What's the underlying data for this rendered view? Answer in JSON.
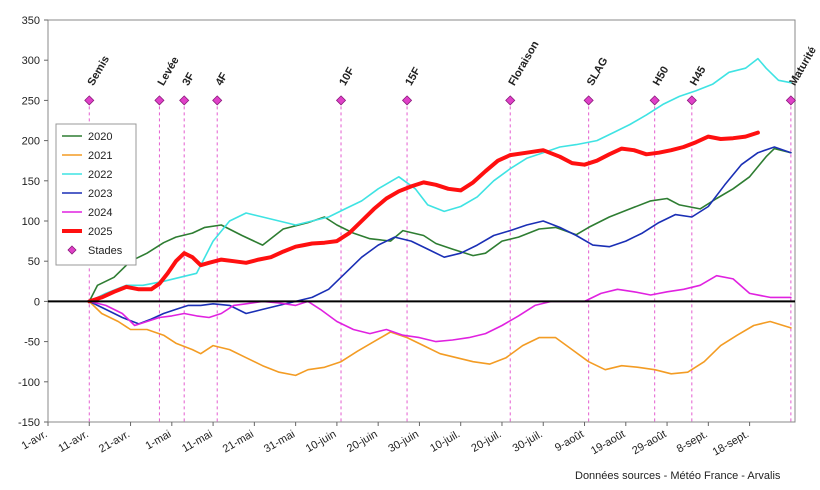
{
  "chart_data": {
    "type": "line",
    "title": "",
    "xlabel": "",
    "ylabel": "",
    "ylim": [
      -150,
      350
    ],
    "yticks": [
      -150,
      -100,
      -50,
      0,
      50,
      100,
      150,
      200,
      250,
      300,
      350
    ],
    "xlim": [
      0,
      181
    ],
    "xtick_labels": [
      "1-avr.",
      "11-avr.",
      "21-avr.",
      "1-mai",
      "11-mai",
      "21-mai",
      "31-mai",
      "10-juin",
      "20-juin",
      "30-juin",
      "10-juil.",
      "20-juil.",
      "30-juil.",
      "9-août",
      "19-août",
      "29-août",
      "8-sept.",
      "18-sept."
    ],
    "xtick_days": [
      0,
      10,
      20,
      30,
      40,
      50,
      60,
      70,
      80,
      90,
      100,
      110,
      120,
      130,
      140,
      150,
      160,
      170
    ],
    "legend_position": "left",
    "series": [
      {
        "name": "2020",
        "color": "#2e7d32",
        "width": 1.6,
        "x": [
          10,
          12,
          16,
          20,
          24,
          28,
          31,
          35,
          38,
          42,
          47,
          52,
          57,
          63,
          67,
          70,
          74,
          78,
          83,
          86,
          91,
          94,
          98,
          103,
          106,
          110,
          114,
          119,
          123,
          128,
          131,
          136,
          141,
          146,
          150,
          153,
          158,
          162,
          166,
          170,
          174,
          176,
          180
        ],
        "y": [
          0,
          20,
          30,
          50,
          60,
          73,
          80,
          85,
          92,
          95,
          82,
          70,
          90,
          98,
          105,
          95,
          85,
          78,
          75,
          88,
          82,
          72,
          65,
          57,
          60,
          75,
          80,
          90,
          92,
          83,
          92,
          105,
          115,
          125,
          128,
          120,
          115,
          128,
          140,
          155,
          180,
          190,
          185
        ]
      },
      {
        "name": "2021",
        "color": "#f39c24",
        "width": 1.6,
        "x": [
          10,
          13,
          17,
          20,
          24,
          28,
          31,
          35,
          37,
          40,
          44,
          48,
          52,
          56,
          60,
          63,
          67,
          71,
          75,
          79,
          83,
          87,
          91,
          95,
          99,
          103,
          107,
          111,
          115,
          119,
          123,
          127,
          131,
          135,
          139,
          143,
          147,
          151,
          155,
          159,
          163,
          167,
          171,
          175,
          180
        ],
        "y": [
          0,
          -15,
          -25,
          -35,
          -35,
          -42,
          -52,
          -60,
          -65,
          -55,
          -60,
          -70,
          -80,
          -88,
          -92,
          -85,
          -82,
          -75,
          -62,
          -50,
          -38,
          -45,
          -55,
          -65,
          -70,
          -75,
          -78,
          -70,
          -55,
          -45,
          -45,
          -60,
          -75,
          -85,
          -80,
          -82,
          -85,
          -90,
          -88,
          -75,
          -55,
          -42,
          -30,
          -25,
          -33
        ]
      },
      {
        "name": "2022",
        "color": "#3fe3e3",
        "width": 1.6,
        "x": [
          10,
          14,
          19,
          23,
          28,
          32,
          36,
          40,
          44,
          48,
          52,
          56,
          60,
          64,
          68,
          72,
          76,
          80,
          85,
          89,
          92,
          96,
          100,
          104,
          108,
          112,
          116,
          120,
          124,
          128,
          133,
          137,
          141,
          145,
          149,
          153,
          157,
          161,
          165,
          169,
          172,
          174,
          177,
          180
        ],
        "y": [
          0,
          10,
          20,
          20,
          25,
          30,
          35,
          75,
          100,
          110,
          105,
          100,
          95,
          100,
          105,
          115,
          125,
          140,
          155,
          140,
          120,
          112,
          118,
          130,
          150,
          165,
          178,
          185,
          192,
          195,
          200,
          210,
          220,
          232,
          245,
          255,
          262,
          270,
          285,
          290,
          302,
          290,
          275,
          272
        ]
      },
      {
        "name": "2023",
        "color": "#1a2fb5",
        "width": 1.6,
        "x": [
          10,
          14,
          18,
          22,
          25,
          28,
          31,
          34,
          37,
          40,
          44,
          48,
          52,
          56,
          60,
          64,
          68,
          72,
          76,
          80,
          84,
          88,
          92,
          96,
          100,
          104,
          108,
          112,
          116,
          120,
          124,
          128,
          132,
          136,
          140,
          144,
          148,
          152,
          156,
          160,
          164,
          168,
          172,
          176,
          180
        ],
        "y": [
          0,
          -10,
          -20,
          -28,
          -22,
          -15,
          -10,
          -5,
          -5,
          -3,
          -5,
          -15,
          -10,
          -5,
          0,
          5,
          15,
          35,
          55,
          70,
          80,
          75,
          65,
          55,
          60,
          70,
          82,
          88,
          95,
          100,
          92,
          82,
          70,
          68,
          75,
          85,
          98,
          108,
          105,
          118,
          145,
          170,
          185,
          192,
          185
        ]
      },
      {
        "name": "2024",
        "color": "#e022e0",
        "width": 1.6,
        "x": [
          10,
          14,
          18,
          21,
          24,
          27,
          30,
          33,
          36,
          39,
          42,
          45,
          48,
          52,
          56,
          60,
          63,
          66,
          70,
          74,
          78,
          82,
          86,
          90,
          94,
          98,
          102,
          106,
          110,
          114,
          118,
          122,
          126,
          130,
          134,
          138,
          142,
          146,
          150,
          154,
          158,
          162,
          166,
          170,
          175,
          180
        ],
        "y": [
          0,
          -5,
          -15,
          -30,
          -25,
          -20,
          -18,
          -15,
          -18,
          -20,
          -15,
          -5,
          -3,
          0,
          -2,
          -5,
          0,
          -10,
          -25,
          -35,
          -40,
          -35,
          -42,
          -45,
          -50,
          -48,
          -45,
          -40,
          -30,
          -18,
          -5,
          0,
          0,
          0,
          10,
          15,
          12,
          8,
          12,
          15,
          20,
          32,
          28,
          10,
          5,
          5
        ]
      },
      {
        "name": "2025",
        "color": "#ff1010",
        "width": 4,
        "x": [
          10,
          13,
          16,
          19,
          22,
          25,
          27,
          29,
          31,
          33,
          35,
          37,
          39,
          42,
          45,
          48,
          51,
          54,
          57,
          60,
          62,
          64,
          67,
          70,
          73,
          76,
          79,
          82,
          85,
          88,
          91,
          94,
          97,
          100,
          103,
          106,
          109,
          112,
          116,
          120,
          124,
          127,
          130,
          133,
          136,
          139,
          142,
          145,
          148,
          151,
          154,
          157,
          160,
          163,
          166,
          169,
          172
        ],
        "y": [
          0,
          5,
          12,
          18,
          15,
          15,
          22,
          35,
          50,
          60,
          55,
          45,
          48,
          52,
          50,
          48,
          52,
          55,
          62,
          68,
          70,
          72,
          73,
          75,
          85,
          100,
          115,
          128,
          137,
          143,
          148,
          145,
          140,
          138,
          148,
          162,
          175,
          182,
          185,
          188,
          180,
          172,
          170,
          175,
          183,
          190,
          188,
          183,
          185,
          188,
          192,
          198,
          205,
          202,
          203,
          205,
          210
        ]
      }
    ],
    "stades": {
      "name": "Stades",
      "color": "#e040c8",
      "y": 250,
      "points": [
        {
          "label": "Semis",
          "day": 10
        },
        {
          "label": "Levée",
          "day": 27
        },
        {
          "label": "3F",
          "day": 33
        },
        {
          "label": "4F",
          "day": 41
        },
        {
          "label": "10F",
          "day": 71
        },
        {
          "label": "15F",
          "day": 87
        },
        {
          "label": "Floraison",
          "day": 112
        },
        {
          "label": "SLAG",
          "day": 131
        },
        {
          "label": "H50",
          "day": 147
        },
        {
          "label": "H45",
          "day": 156
        },
        {
          "label": "Maturité",
          "day": 180
        }
      ]
    }
  },
  "source_text": "Données sources - Météo France - Arvalis"
}
